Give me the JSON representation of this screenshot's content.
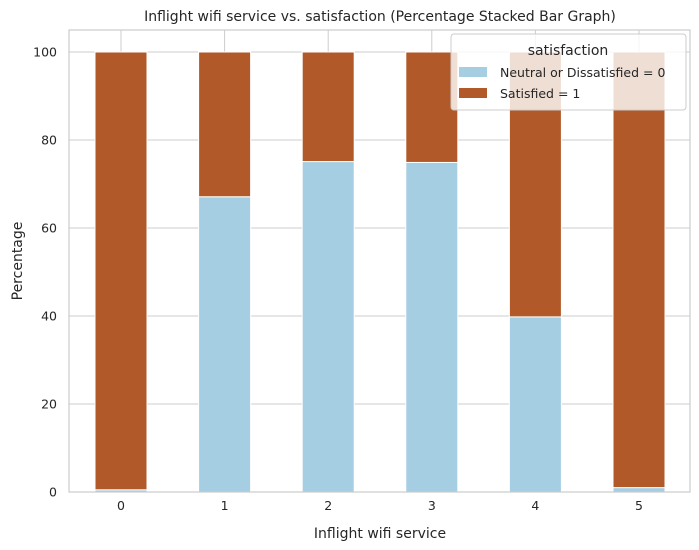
{
  "chart_data": {
    "type": "bar",
    "stacked": true,
    "title": "Inflight wifi service vs. satisfaction (Percentage Stacked Bar Graph)",
    "xlabel": "Inflight wifi service",
    "ylabel": "Percentage",
    "categories": [
      "0",
      "1",
      "2",
      "3",
      "4",
      "5"
    ],
    "ylim": [
      0,
      105
    ],
    "yticks": [
      "0",
      "20",
      "40",
      "60",
      "80",
      "100"
    ],
    "grid": true,
    "legend": {
      "title": "satisfaction",
      "placement": "top-right"
    },
    "series": [
      {
        "name": "Neutral or Dissatisfied = 0",
        "color": "#a6cee3",
        "values": [
          0.5,
          67.1,
          75.1,
          74.9,
          39.8,
          1.0
        ]
      },
      {
        "name": "Satisfied = 1",
        "color": "#b15928",
        "values": [
          99.5,
          32.9,
          24.9,
          25.1,
          60.2,
          99.0
        ]
      }
    ]
  }
}
